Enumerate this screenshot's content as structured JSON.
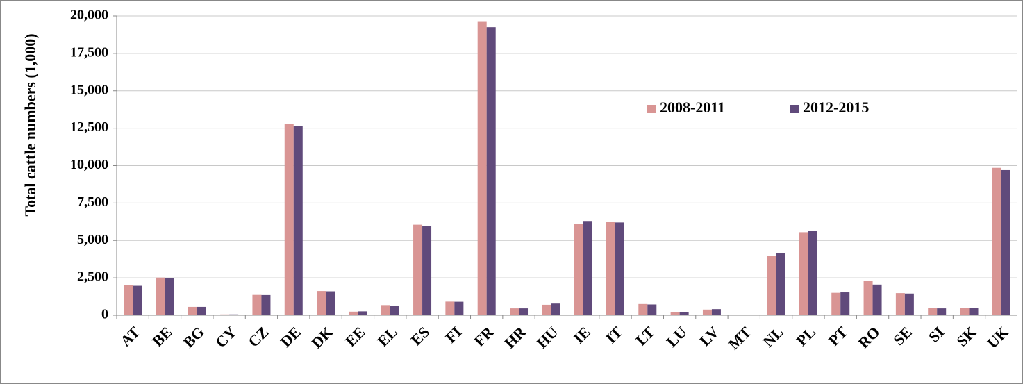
{
  "chart_data": {
    "type": "bar",
    "y_label": "Total cattle numbers (1,000)",
    "categories": [
      "AT",
      "BE",
      "BG",
      "CY",
      "CZ",
      "DE",
      "DK",
      "EE",
      "EL",
      "ES",
      "FI",
      "FR",
      "HR",
      "HU",
      "IE",
      "IT",
      "LT",
      "LU",
      "LV",
      "MT",
      "NL",
      "PL",
      "PT",
      "RO",
      "SE",
      "SI",
      "SK",
      "UK"
    ],
    "series": [
      {
        "name": "2008-2011",
        "color": "#d99594",
        "values": [
          2000,
          2520,
          560,
          55,
          1360,
          12800,
          1620,
          240,
          680,
          6050,
          910,
          19650,
          460,
          700,
          6100,
          6250,
          750,
          195,
          380,
          15,
          3950,
          5550,
          1500,
          2300,
          1480,
          470,
          470,
          9850
        ]
      },
      {
        "name": "2012-2015",
        "color": "#604a7b",
        "values": [
          1970,
          2460,
          560,
          57,
          1350,
          12650,
          1600,
          260,
          650,
          5980,
          900,
          19250,
          460,
          780,
          6300,
          6200,
          720,
          200,
          410,
          15,
          4150,
          5650,
          1530,
          2050,
          1450,
          460,
          470,
          9700
        ]
      }
    ],
    "ylim": [
      0,
      20000
    ],
    "yticks": [
      0,
      {
        "value": 2500,
        "label": "2,500"
      },
      {
        "value": 5000,
        "label": "5,000"
      },
      {
        "value": 7500,
        "label": "7,500"
      },
      {
        "value": 10000,
        "label": "10,000"
      },
      {
        "value": 12500,
        "label": "12,500"
      },
      {
        "value": 15000,
        "label": "15,000"
      },
      {
        "value": 17500,
        "label": "17,500"
      },
      {
        "value": 20000,
        "label": "20,000"
      }
    ],
    "grid": true
  }
}
